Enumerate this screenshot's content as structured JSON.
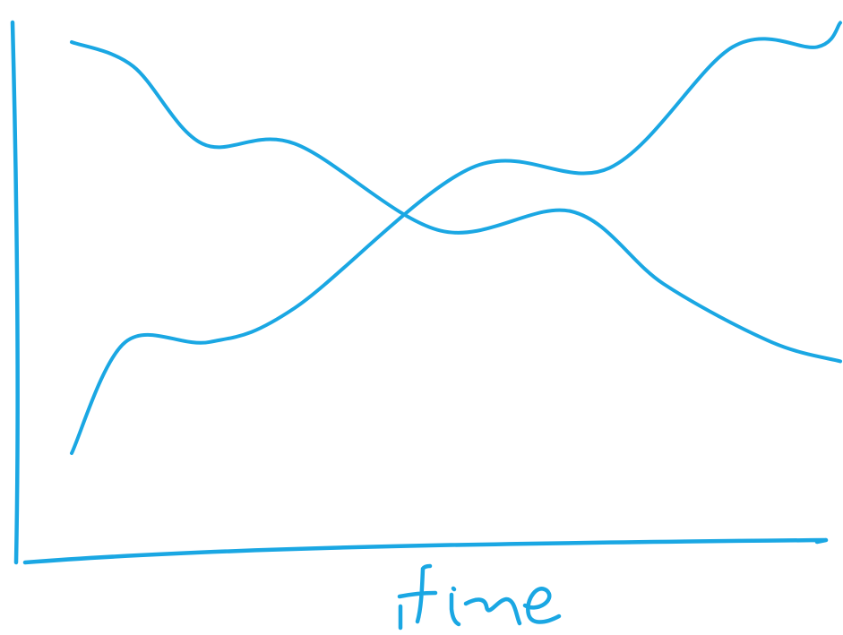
{
  "chart_data": {
    "type": "line",
    "style": "hand-drawn sketch",
    "title": "",
    "xlabel": "time",
    "ylabel": "",
    "xlim": [
      0,
      1
    ],
    "ylim": [
      0,
      1
    ],
    "grid": false,
    "legend": "none",
    "series": [
      {
        "x": [
          0.0,
          0.08,
          0.17,
          0.29,
          0.48,
          0.65,
          0.77,
          0.91,
          1.0
        ],
        "y": [
          0.95,
          0.9,
          0.74,
          0.74,
          0.56,
          0.6,
          0.45,
          0.33,
          0.29
        ]
      },
      {
        "x": [
          0.0,
          0.07,
          0.18,
          0.29,
          0.52,
          0.7,
          0.86,
          0.97,
          1.0
        ],
        "y": [
          0.1,
          0.33,
          0.33,
          0.4,
          0.69,
          0.69,
          0.94,
          0.94,
          0.99
        ]
      }
    ]
  },
  "colors": {
    "stroke": "#1aa7e3",
    "background": "#ffffff"
  }
}
